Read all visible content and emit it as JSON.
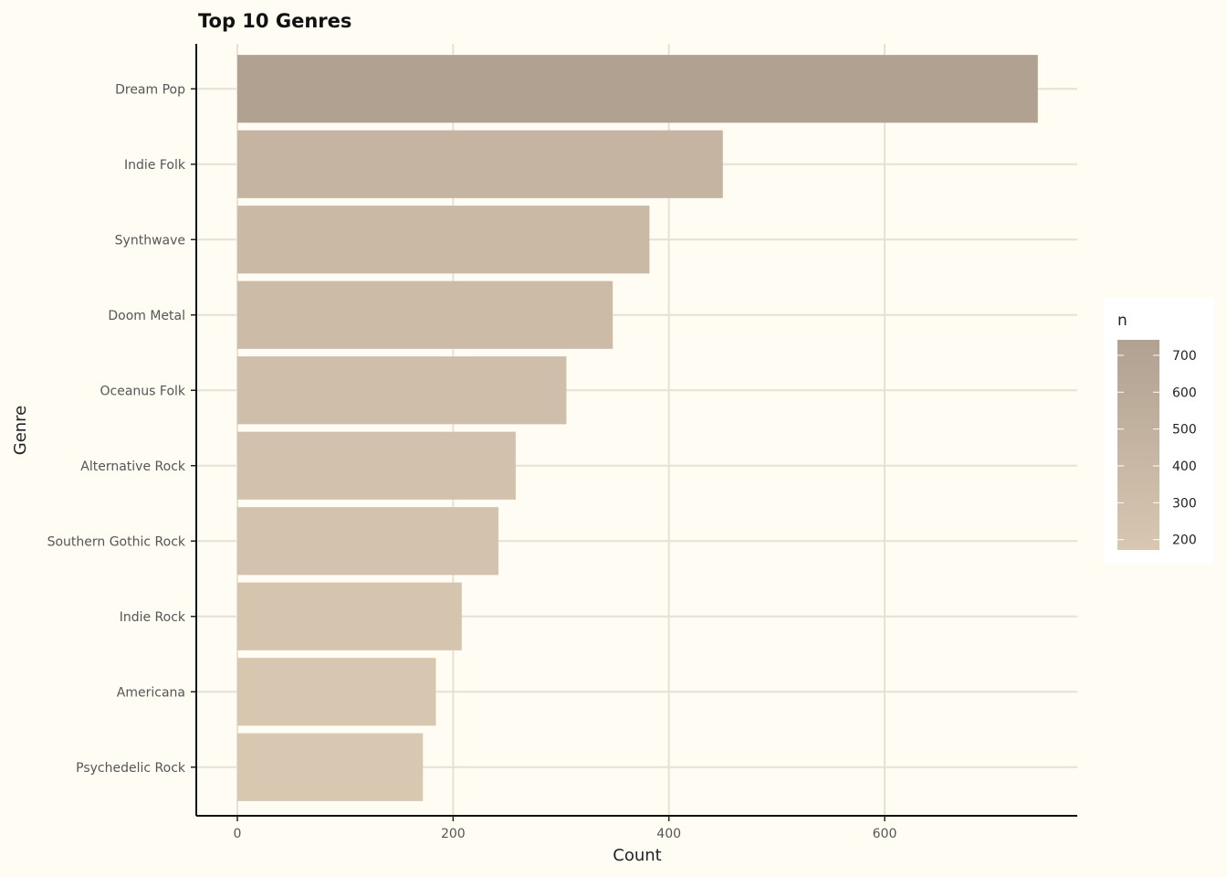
{
  "chart_data": {
    "type": "bar",
    "orientation": "horizontal",
    "title": "Top 10 Genres",
    "xlabel": "Count",
    "ylabel": "Genre",
    "categories": [
      "Dream Pop",
      "Indie Folk",
      "Synthwave",
      "Doom Metal",
      "Oceanus Folk",
      "Alternative Rock",
      "Southern Gothic Rock",
      "Indie Rock",
      "Americana",
      "Psychedelic Rock"
    ],
    "values": [
      742,
      450,
      382,
      348,
      305,
      258,
      242,
      208,
      184,
      172
    ],
    "xlim": [
      0,
      780
    ],
    "xticks": [
      0,
      200,
      400,
      600
    ],
    "grid": true,
    "legend": {
      "title": "n",
      "position": "right",
      "ticks": [
        700,
        600,
        500,
        400,
        300,
        200
      ],
      "range": [
        172,
        742
      ],
      "color_low": "#d8c7b1",
      "color_high": "#b0a191"
    }
  }
}
